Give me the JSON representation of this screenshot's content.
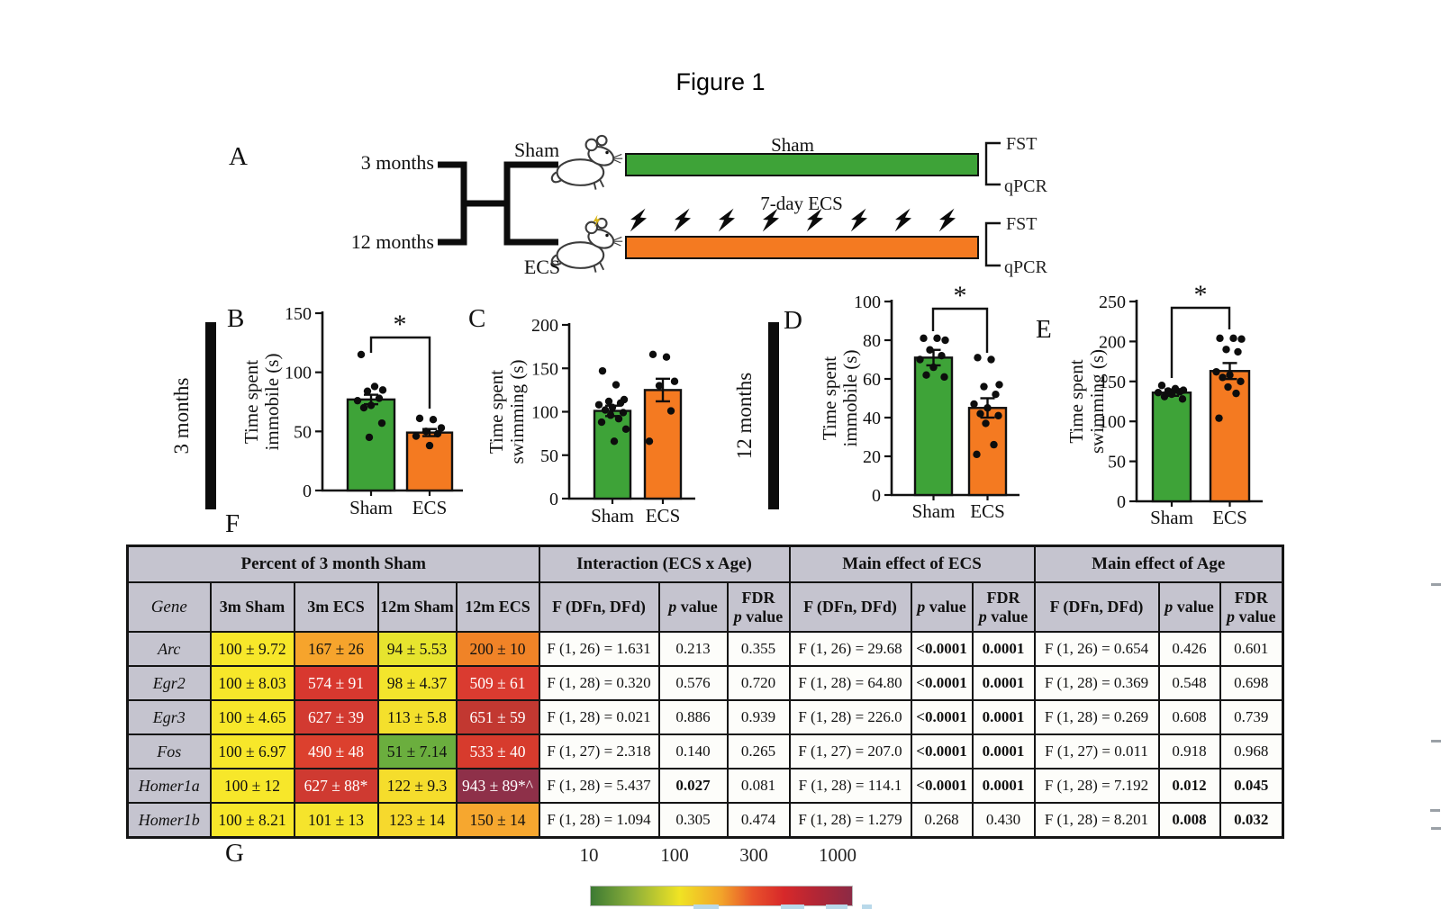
{
  "figure_title": "Figure 1",
  "panel_labels": {
    "a": "A",
    "b": "B",
    "c": "C",
    "d": "D",
    "e": "E",
    "f": "F",
    "g": "G"
  },
  "panel_a": {
    "age_branch_top": "3 months",
    "age_branch_bottom": "12 months",
    "branch_top_label": "Sham",
    "branch_bottom_label": "ECS",
    "timeline_top_label": "Sham",
    "timeline_bottom_label": "7-day ECS",
    "endpoints": {
      "fst": "FST",
      "qpcr": "qPCR"
    },
    "colors": {
      "sham_bar": "#3ea338",
      "ecs_bar": "#f47a21"
    },
    "bolt_count": 8
  },
  "side_labels": {
    "top_row": "3 months",
    "bottom_row": "12 months"
  },
  "chart_data": [
    {
      "panel": "B",
      "type": "bar",
      "title": "",
      "ylabel": [
        "Time spent",
        "immobile (s)"
      ],
      "categories": [
        "Sham",
        "ECS"
      ],
      "values": [
        77,
        49
      ],
      "errors": [
        4,
        3
      ],
      "ylim": [
        0,
        150
      ],
      "yticks": [
        0,
        50,
        100,
        150
      ],
      "significance": "*",
      "colors": [
        "#3ea338",
        "#f47a21"
      ],
      "points": [
        [
          115,
          88,
          85,
          84,
          78,
          76,
          72,
          70,
          57,
          45
        ],
        [
          61,
          60,
          53,
          50,
          48,
          46,
          38
        ]
      ]
    },
    {
      "panel": "C",
      "type": "bar",
      "title": "",
      "ylabel": [
        "Time spent",
        "swimming (s)"
      ],
      "categories": [
        "Sham",
        "ECS"
      ],
      "values": [
        101,
        125
      ],
      "errors": [
        6,
        13
      ],
      "ylim": [
        0,
        200
      ],
      "yticks": [
        0,
        50,
        100,
        150,
        200
      ],
      "significance": null,
      "colors": [
        "#3ea338",
        "#f47a21"
      ],
      "points": [
        [
          147,
          131,
          114,
          112,
          110,
          108,
          105,
          102,
          99,
          96,
          92,
          88,
          80,
          66
        ],
        [
          166,
          163,
          135,
          130,
          101,
          66
        ]
      ]
    },
    {
      "panel": "D",
      "type": "bar",
      "title": "",
      "ylabel": [
        "Time spent",
        "immobile (s)"
      ],
      "categories": [
        "Sham",
        "ECS"
      ],
      "values": [
        71,
        45
      ],
      "errors": [
        4,
        5
      ],
      "ylim": [
        0,
        100
      ],
      "yticks": [
        0,
        20,
        40,
        60,
        80,
        100
      ],
      "significance": "*",
      "colors": [
        "#3ea338",
        "#f47a21"
      ],
      "points": [
        [
          81,
          81,
          80,
          75,
          72,
          70,
          66,
          62,
          61
        ],
        [
          71,
          70,
          57,
          56,
          52,
          47,
          45,
          42,
          41,
          37,
          26,
          21
        ]
      ]
    },
    {
      "panel": "E",
      "type": "bar",
      "title": "",
      "ylabel": [
        "Time spent",
        "swimming (s)"
      ],
      "categories": [
        "Sham",
        "ECS"
      ],
      "values": [
        136,
        163
      ],
      "errors": [
        4,
        10
      ],
      "ylim": [
        0,
        250
      ],
      "yticks": [
        0,
        50,
        100,
        150,
        200,
        250
      ],
      "significance": "*",
      "colors": [
        "#3ea338",
        "#f47a21"
      ],
      "points": [
        [
          145,
          141,
          139,
          138,
          137,
          136,
          134,
          131,
          128
        ],
        [
          204,
          204,
          203,
          190,
          187,
          162,
          158,
          155,
          150,
          143,
          135,
          104
        ]
      ]
    }
  ],
  "table": {
    "group_headers": [
      {
        "label": "Percent of 3 month Sham",
        "span": 5
      },
      {
        "label": "Interaction (ECS x Age)",
        "span": 3
      },
      {
        "label": "Main effect of ECS",
        "span": 3
      },
      {
        "label": "Main effect of Age",
        "span": 3
      }
    ],
    "col_headers": [
      "Gene",
      "3m Sham",
      "3m ECS",
      "12m Sham",
      "12m ECS",
      "F (DFn, DFd)",
      "*p* value",
      "FDR\n*p* value",
      "F (DFn, DFd)",
      "*p* value",
      "FDR\n*p* value",
      "F (DFn, DFd)",
      "*p* value",
      "FDR\n*p* value"
    ],
    "rows": [
      {
        "gene": "Arc",
        "cells": [
          {
            "t": "100 ± 9.72",
            "bg": "#f7e72a"
          },
          {
            "t": "167 ± 26",
            "bg": "#f6a42c"
          },
          {
            "t": "94 ± 5.53",
            "bg": "#e6e42e"
          },
          {
            "t": "200 ± 10",
            "bg": "#f08327"
          },
          {
            "t": "F (1, 26) = 1.631"
          },
          {
            "t": "0.213"
          },
          {
            "t": "0.355"
          },
          {
            "t": "F (1, 26) = 29.68"
          },
          {
            "t": "<0.0001",
            "b": 1
          },
          {
            "t": "0.0001",
            "b": 1
          },
          {
            "t": "F (1, 26) = 0.654"
          },
          {
            "t": "0.426"
          },
          {
            "t": "0.601"
          }
        ]
      },
      {
        "gene": "Egr2",
        "cells": [
          {
            "t": "100 ± 8.03",
            "bg": "#f7e72a"
          },
          {
            "t": "574 ± 91",
            "bg": "#d8382f",
            "fg": "#fff"
          },
          {
            "t": "98 ± 4.37",
            "bg": "#f3e52c"
          },
          {
            "t": "509 ± 61",
            "bg": "#da3b30",
            "fg": "#fff"
          },
          {
            "t": "F (1, 28) = 0.320"
          },
          {
            "t": "0.576"
          },
          {
            "t": "0.720"
          },
          {
            "t": "F (1, 28) = 64.80"
          },
          {
            "t": "<0.0001",
            "b": 1
          },
          {
            "t": "0.0001",
            "b": 1
          },
          {
            "t": "F (1, 28) = 0.369"
          },
          {
            "t": "0.548"
          },
          {
            "t": "0.698"
          }
        ]
      },
      {
        "gene": "Egr3",
        "cells": [
          {
            "t": "100 ± 4.65",
            "bg": "#f7e72a"
          },
          {
            "t": "627 ± 39",
            "bg": "#d23a31",
            "fg": "#fff"
          },
          {
            "t": "113 ± 5.8",
            "bg": "#f4e02c"
          },
          {
            "t": "651 ± 59",
            "bg": "#c23831",
            "fg": "#fff"
          },
          {
            "t": "F (1, 28) = 0.021"
          },
          {
            "t": "0.886"
          },
          {
            "t": "0.939"
          },
          {
            "t": "F (1, 28) = 226.0"
          },
          {
            "t": "<0.0001",
            "b": 1
          },
          {
            "t": "0.0001",
            "b": 1
          },
          {
            "t": "F (1, 28) = 0.269"
          },
          {
            "t": "0.608"
          },
          {
            "t": "0.739"
          }
        ]
      },
      {
        "gene": "Fos",
        "cells": [
          {
            "t": "100 ± 6.97",
            "bg": "#f7e72a"
          },
          {
            "t": "490 ± 48",
            "bg": "#dc402e",
            "fg": "#fff"
          },
          {
            "t": "51 ± 7.14",
            "bg": "#6bae3e"
          },
          {
            "t": "533 ± 40",
            "bg": "#d73b2d",
            "fg": "#fff"
          },
          {
            "t": "F (1, 27) = 2.318"
          },
          {
            "t": "0.140"
          },
          {
            "t": "0.265"
          },
          {
            "t": "F (1, 27) = 207.0"
          },
          {
            "t": "<0.0001",
            "b": 1
          },
          {
            "t": "0.0001",
            "b": 1
          },
          {
            "t": "F (1, 27) = 0.011"
          },
          {
            "t": "0.918"
          },
          {
            "t": "0.968"
          }
        ]
      },
      {
        "gene": "Homer1a",
        "cells": [
          {
            "t": "100 ± 12",
            "bg": "#f7e72a"
          },
          {
            "t": "627 ± 88*",
            "bg": "#cf3a31",
            "fg": "#fff"
          },
          {
            "t": "122 ± 9.3",
            "bg": "#f5dd2c"
          },
          {
            "t": "943 ± 89*^",
            "bg": "#8e3049",
            "fg": "#fff"
          },
          {
            "t": "F (1, 28) = 5.437"
          },
          {
            "t": "0.027",
            "b": 1
          },
          {
            "t": "0.081"
          },
          {
            "t": "F (1, 28) = 114.1"
          },
          {
            "t": "<0.0001",
            "b": 1
          },
          {
            "t": "0.0001",
            "b": 1
          },
          {
            "t": "F (1, 28) = 7.192"
          },
          {
            "t": "0.012",
            "b": 1
          },
          {
            "t": "0.045",
            "b": 1
          }
        ]
      },
      {
        "gene": "Homer1b",
        "cells": [
          {
            "t": "100 ± 8.21",
            "bg": "#f7e72a"
          },
          {
            "t": "101 ± 13",
            "bg": "#f5e42c"
          },
          {
            "t": "123 ± 14",
            "bg": "#f6d92d"
          },
          {
            "t": "150 ± 14",
            "bg": "#f6a72f"
          },
          {
            "t": "F (1, 28) = 1.094"
          },
          {
            "t": "0.305"
          },
          {
            "t": "0.474"
          },
          {
            "t": "F (1, 28) = 1.279"
          },
          {
            "t": "0.268"
          },
          {
            "t": "0.430"
          },
          {
            "t": "F (1, 28) = 8.201"
          },
          {
            "t": "0.008",
            "b": 1
          },
          {
            "t": "0.032",
            "b": 1
          }
        ]
      }
    ]
  },
  "colorbar": {
    "tick_labels": [
      "10",
      "100",
      "300",
      "1000"
    ],
    "gradient_stops": [
      "#3c7a33",
      "#f0e324",
      "#f2a32a",
      "#d7282a",
      "#8c2a45"
    ]
  }
}
